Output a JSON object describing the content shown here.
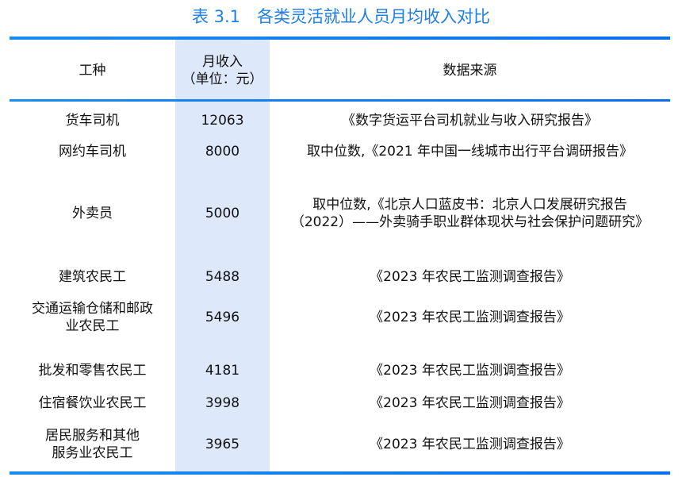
{
  "title": "表 3.1　各类灵活就业人员月均收入对比",
  "headers": {
    "type": "工种",
    "income_line1": "月收入",
    "income_line2": "（单位：元）",
    "source": "数据来源"
  },
  "accent_color": "#1f7fe8",
  "rows": [
    {
      "type": "货车司机",
      "income": "12063",
      "source": "《数字货运平台司机就业与收入研究报告》"
    },
    {
      "type": "网约车司机",
      "income": "8000",
      "source": "取中位数,《2021 年中国一线城市出行平台调研报告》"
    },
    {
      "type": "外卖员",
      "income": "5000",
      "source": "取中位数,《北京人口蓝皮书：北京人口发展研究报告",
      "source2": "（2022）——外卖骑手职业群体现状与社会保护问题研究》"
    },
    {
      "type": "建筑农民工",
      "income": "5488",
      "source": "《2023 年农民工监测调查报告》"
    },
    {
      "type": "交通运输仓储和邮政",
      "type2": "业农民工",
      "income": "5496",
      "source": "《2023 年农民工监测调查报告》"
    },
    {
      "type": "批发和零售农民工",
      "income": "4181",
      "source": "《2023 年农民工监测调查报告》"
    },
    {
      "type": "住宿餐饮业农民工",
      "income": "3998",
      "source": "《2023 年农民工监测调查报告》"
    },
    {
      "type": "居民服务和其他",
      "type2": "服务业农民工",
      "income": "3965",
      "source": "《2023 年农民工监测调查报告》"
    }
  ]
}
